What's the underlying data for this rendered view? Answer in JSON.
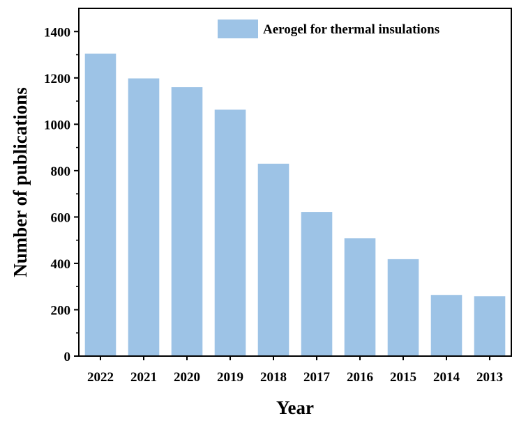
{
  "chart_data": {
    "type": "bar",
    "categories": [
      "2022",
      "2021",
      "2020",
      "2019",
      "2018",
      "2017",
      "2016",
      "2015",
      "2014",
      "2013"
    ],
    "series": [
      {
        "name": "Aerogel for thermal insulations",
        "values": [
          1305,
          1198,
          1160,
          1063,
          830,
          622,
          508,
          418,
          264,
          258
        ],
        "color": "#9dc3e6"
      }
    ],
    "xlabel": "Year",
    "ylabel": "Number of publications",
    "ylim": [
      0,
      1500
    ],
    "yticks": [
      0,
      200,
      400,
      600,
      800,
      1000,
      1200,
      1400
    ],
    "grid": false,
    "legend_position": "top-right"
  }
}
